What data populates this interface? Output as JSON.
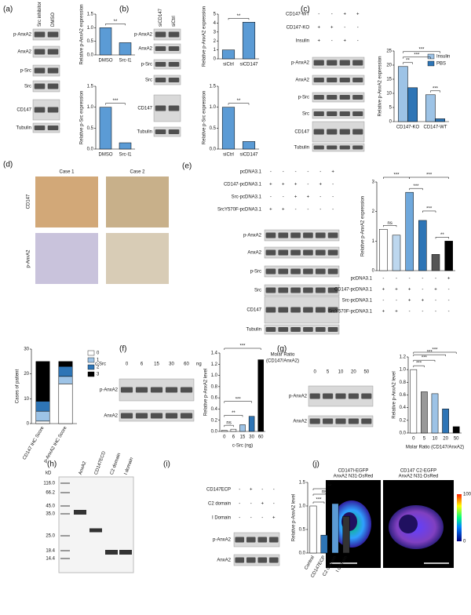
{
  "panels": [
    "(a)",
    "(b)",
    "(c)",
    "(d)",
    "(e)",
    "(f)",
    "(g)",
    "(h)",
    "(i)",
    "(j)"
  ],
  "blots": [
    {
      "lanes": [
        "Src inhibitor",
        "DMSO"
      ],
      "rows": [
        "p-AnxA2",
        "AnxA2",
        "p-Src",
        "Src",
        "CD147",
        "Tubulin"
      ]
    },
    {
      "lanes": [
        "siCD147",
        "siCtrl"
      ],
      "rows": [
        "p-AnxA2",
        "AnxA2",
        "p-Src",
        "Src",
        "CD147",
        "Tubulin"
      ]
    },
    {
      "conditions": [
        {
          "name": "CD147-WT",
          "signs": [
            "-",
            "-",
            "+",
            "+"
          ]
        },
        {
          "name": "CD147-KO",
          "signs": [
            "+",
            "+",
            "-",
            "-"
          ]
        },
        {
          "name": "Insulin",
          "signs": [
            "+",
            "-",
            "+",
            "-"
          ]
        }
      ],
      "rows": [
        "p-AnxA2",
        "AnxA2",
        "p-Src",
        "Src",
        "CD147",
        "Tubulin"
      ]
    },
    {
      "conditions": [
        {
          "name": "pcDNA3.1",
          "signs": [
            "-",
            "-",
            "-",
            "-",
            "-",
            "+"
          ]
        },
        {
          "name": "CD147-pcDNA3.1",
          "signs": [
            "+",
            "+",
            "+",
            "-",
            "+",
            "-"
          ]
        },
        {
          "name": "Src-pcDNA3.1",
          "signs": [
            "-",
            "-",
            "+",
            "+",
            "-",
            "-"
          ]
        },
        {
          "name": "SrcY570F-pcDNA3.1",
          "signs": [
            "+",
            "+",
            "-",
            "-",
            "-",
            "-"
          ]
        }
      ],
      "rows": [
        "p-AnxA2",
        "AnxA2",
        "p-Src",
        "Src",
        "CD147",
        "Tubulin"
      ]
    },
    {
      "header": [
        "c-Src"
      ],
      "lanes": [
        0,
        6,
        15,
        30,
        60
      ],
      "unit": "ng",
      "rows": [
        "p-AnxA2",
        "AnxA2"
      ]
    },
    {
      "header": [
        "Molar Ratio",
        "(CD147/AnxA2)"
      ],
      "lanes": [
        0,
        5,
        10,
        20,
        50
      ],
      "rows": [
        "p-AnxA2",
        "AnxA2"
      ]
    },
    {
      "conditions": [
        {
          "name": "CD147ECP",
          "signs": [
            "-",
            "+",
            "-",
            "-"
          ]
        },
        {
          "name": "C2 domain",
          "signs": [
            "-",
            "-",
            "+",
            "-"
          ]
        },
        {
          "name": "I Domain",
          "signs": [
            "-",
            "-",
            "-",
            "+"
          ]
        }
      ],
      "rows": [
        "p-AnxA2",
        "AnxA2"
      ]
    }
  ],
  "ihc": {
    "columns": [
      "Case 1",
      "Case 2"
    ],
    "rows": [
      "CD147",
      "p-AnxA2"
    ]
  },
  "gel": {
    "unit": "kD",
    "markers": [
      "116.0",
      "66.2",
      "45.0",
      "35.0",
      "25.0",
      "18.4",
      "14.4"
    ],
    "lanes": [
      "AnxA2",
      "CD147ECD",
      "C2 domain",
      "I domain"
    ]
  },
  "fluor": {
    "panels": [
      [
        "CD147I-EGFP",
        "AnxA2 N31-DsRed"
      ],
      [
        "CD147 C2-EGFP",
        "AnxA2 N31-DsRed"
      ]
    ],
    "colorbar": [
      100,
      0
    ]
  },
  "chart_data": [
    {
      "type": "bar",
      "y_label": "Relative p-AnxA2 expression",
      "categories": [
        "DMSO",
        "Src-I1"
      ],
      "values": [
        1.0,
        0.45
      ],
      "colors": [
        "#5b9bd5",
        "#5b9bd5"
      ],
      "ylim": [
        0,
        1.5
      ],
      "yticks": [
        {
          "value": 0,
          "label": "0.0"
        },
        0.5,
        {
          "value": 1,
          "label": "1.0"
        },
        1.5
      ],
      "annotations": [
        "**"
      ]
    },
    {
      "type": "bar",
      "y_label": "Relative p-Src expression",
      "categories": [
        "DMSO",
        "Src-I1"
      ],
      "values": [
        1.0,
        0.15
      ],
      "colors": [
        "#5b9bd5",
        "#5b9bd5"
      ],
      "ylim": [
        0,
        1.5
      ],
      "yticks": [
        {
          "value": 0,
          "label": "0.0"
        },
        0.5,
        {
          "value": 1,
          "label": "1.0"
        },
        1.5
      ],
      "annotations": [
        "***"
      ]
    },
    {
      "type": "bar",
      "y_label": "Relative p-AnxA2 expression",
      "categories": [
        "siCtrl",
        "siCD147"
      ],
      "values": [
        1.0,
        4.1
      ],
      "colors": [
        "#5b9bd5",
        "#5b9bd5"
      ],
      "ylim": [
        0,
        5
      ],
      "yticks": [
        0,
        1,
        2,
        3,
        4,
        5
      ],
      "annotations": [
        "**"
      ]
    },
    {
      "type": "bar",
      "y_label": "Relative p-Src expression",
      "categories": [
        "siCtrl",
        "siCD147"
      ],
      "values": [
        1.0,
        0.18
      ],
      "colors": [
        "#5b9bd5",
        "#5b9bd5"
      ],
      "ylim": [
        0,
        1.5
      ],
      "yticks": [
        {
          "value": 0,
          "label": "0.0"
        },
        0.5,
        {
          "value": 1,
          "label": "1.0"
        },
        1.5
      ],
      "annotations": [
        "**"
      ]
    },
    {
      "type": "grouped",
      "y_label": "Relative p-AnxA2 expression",
      "categories": [
        "CD147-KO",
        "CD147-WT"
      ],
      "series": [
        {
          "name": "Insulin",
          "color": "#9dc3e6",
          "values": [
            19.5,
            9.5
          ]
        },
        {
          "name": "PBS",
          "color": "#2e75b6",
          "values": [
            12,
            1
          ]
        }
      ],
      "ylim": [
        0,
        25
      ],
      "yticks": [
        0,
        5,
        10,
        15,
        20,
        25
      ],
      "annotations": [
        "**",
        "***",
        "***",
        "***"
      ]
    },
    {
      "type": "bar",
      "y_label": "Relative p-AnxA2 expression",
      "values": [
        1.4,
        1.2,
        2.65,
        1.7,
        0.55,
        1.0
      ],
      "colors": [
        "#ffffff",
        "#bdd7ee",
        "#6fa8dc",
        "#2e75b6",
        "#555555",
        "#000000"
      ],
      "ylim": [
        0,
        3
      ],
      "yticks": [
        0,
        1,
        2,
        3
      ],
      "annotations": [
        "ns",
        "***",
        "***",
        "***",
        "***",
        "**"
      ],
      "conditions": [
        {
          "name": "pcDNA3.1",
          "signs": [
            "-",
            "-",
            "-",
            "-",
            "-",
            "+"
          ]
        },
        {
          "name": "CD147-pcDNA3.1",
          "signs": [
            "+",
            "+",
            "+",
            "-",
            "+",
            "-"
          ]
        },
        {
          "name": "Src-pcDNA3.1",
          "signs": [
            "-",
            "-",
            "+",
            "+",
            "-",
            "-"
          ]
        },
        {
          "name": "SrcY570F-pcDNA3.1",
          "signs": [
            "+",
            "+",
            "-",
            "-",
            "-",
            "-"
          ]
        }
      ]
    },
    {
      "type": "stacked",
      "y_label": "Cases of patient",
      "categories": [
        "CD147 IHC Score",
        "p-AnxA2 IHC Score"
      ],
      "series": [
        {
          "name": "0",
          "color": "#ffffff",
          "values": [
            1,
            16
          ]
        },
        {
          "name": "1",
          "color": "#9dc3e6",
          "values": [
            4,
            3
          ]
        },
        {
          "name": "2",
          "color": "#2e75b6",
          "values": [
            4,
            4
          ]
        },
        {
          "name": "3",
          "color": "#000000",
          "values": [
            16,
            2
          ]
        }
      ],
      "ylim": [
        0,
        30
      ],
      "yticks": [
        0,
        10,
        20,
        30
      ]
    },
    {
      "type": "bar",
      "y_label": "Relative p-AnxA2 level",
      "x_label": "c-Src (ng)",
      "categories": [
        0,
        6,
        15,
        30,
        60
      ],
      "values": [
        0.02,
        0.04,
        0.12,
        0.27,
        1.28
      ],
      "colors": [
        "#ffffff",
        "#ffffff",
        "#9dc3e6",
        "#2e75b6",
        "#000000"
      ],
      "ylim": [
        0,
        1.4
      ],
      "yticks": [
        {
          "value": 0,
          "label": "0.0"
        },
        0.2,
        0.4,
        0.6,
        0.8,
        {
          "value": 1,
          "label": "1.0"
        },
        1.2,
        1.4
      ],
      "annotations": [
        "ns",
        "**",
        "***",
        "***"
      ]
    },
    {
      "type": "bar",
      "y_label": "Relative p-AnxA2 level",
      "x_label": "Molar Ratio (CD147/AnxA2)",
      "categories": [
        0,
        5,
        10,
        20,
        50
      ],
      "values": [
        1.0,
        0.65,
        0.62,
        0.38,
        0.1
      ],
      "colors": [
        "#ffffff",
        "#999999",
        "#9dc3e6",
        "#2e75b6",
        "#000000"
      ],
      "ylim": [
        0,
        1.2
      ],
      "yticks": [
        {
          "value": 0,
          "label": "0.0"
        },
        0.2,
        0.4,
        0.6,
        0.8,
        {
          "value": 1,
          "label": "1.0"
        },
        1.2
      ],
      "annotations": [
        "***",
        "***",
        "***",
        "***"
      ]
    },
    {
      "type": "bar",
      "y_label": "Relative p-AnxA2 level",
      "categories": [
        "Control",
        "CD147ECP",
        "C2 domain",
        "I domain"
      ],
      "values": [
        1.0,
        0.38,
        1.05,
        0.78
      ],
      "colors": [
        "#ffffff",
        "#2e75b6",
        "#5b9bd5",
        "#333333"
      ],
      "ylim": [
        0,
        1.5
      ],
      "yticks": [
        {
          "value": 0,
          "label": "0.0"
        },
        0.5,
        {
          "value": 1,
          "label": "1.0"
        },
        1.5
      ],
      "annotations": [
        "***",
        "ns",
        "**"
      ]
    }
  ]
}
